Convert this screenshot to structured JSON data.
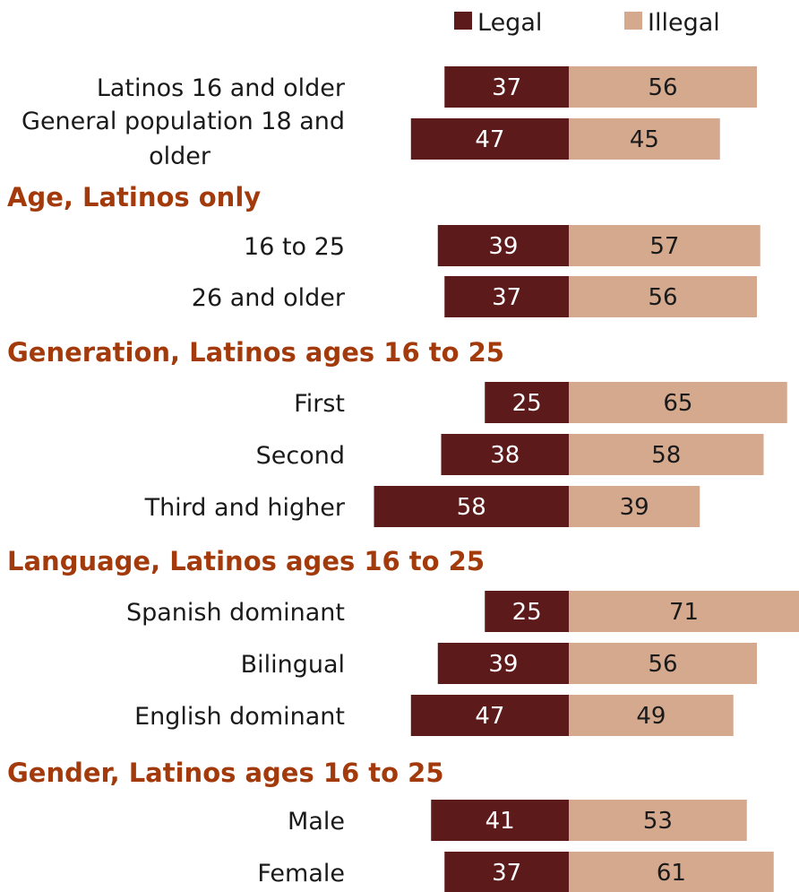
{
  "chart_data": {
    "type": "bar",
    "orientation": "horizontal",
    "stacked": "diverging",
    "legend": [
      {
        "name": "Legal",
        "color": "#5c1a1b"
      },
      {
        "name": "Illegal",
        "color": "#d4a98d"
      }
    ],
    "groups": [
      {
        "title": "",
        "rows": [
          {
            "label": "Latinos 16 and older",
            "legal": 37,
            "illegal": 56
          },
          {
            "label": "General population 18 and older",
            "legal": 47,
            "illegal": 45
          }
        ]
      },
      {
        "title": "Age, Latinos only",
        "rows": [
          {
            "label": "16 to 25",
            "legal": 39,
            "illegal": 57
          },
          {
            "label": "26 and older",
            "legal": 37,
            "illegal": 56
          }
        ]
      },
      {
        "title": "Generation, Latinos ages 16 to 25",
        "rows": [
          {
            "label": "First",
            "legal": 25,
            "illegal": 65
          },
          {
            "label": "Second",
            "legal": 38,
            "illegal": 58
          },
          {
            "label": "Third and higher",
            "legal": 58,
            "illegal": 39
          }
        ]
      },
      {
        "title": "Language, Latinos ages 16 to 25",
        "rows": [
          {
            "label": "Spanish dominant",
            "legal": 25,
            "illegal": 71
          },
          {
            "label": "Bilingual",
            "legal": 39,
            "illegal": 56
          },
          {
            "label": "English dominant",
            "legal": 47,
            "illegal": 49
          }
        ]
      },
      {
        "title": "Gender, Latinos ages 16 to 25",
        "rows": [
          {
            "label": "Male",
            "legal": 41,
            "illegal": 53
          },
          {
            "label": "Female",
            "legal": 37,
            "illegal": 61
          }
        ]
      }
    ]
  }
}
